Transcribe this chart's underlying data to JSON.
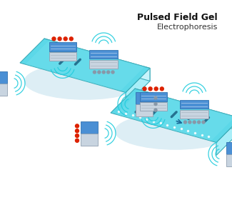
{
  "title_line1": "Pulsed Field Gel",
  "title_line2": "Electrophoresis",
  "bg_color": "#ffffff",
  "gel_top": "#5cd8e8",
  "gel_top2": "#7ee4f0",
  "gel_right": "#a8eef8",
  "gel_front": "#c8f4fc",
  "gel_edge": "#3aabb8",
  "gel_shadow": "#ddeef5",
  "el_blue": "#4a8fd4",
  "el_blue2": "#6aaee4",
  "el_gray": "#c8d4e0",
  "el_gray2": "#e0e8f0",
  "el_red": "#dd2200",
  "sig_color": "#22ccdd",
  "band_color": "#1a6080",
  "dot_gray": "#8898a8"
}
